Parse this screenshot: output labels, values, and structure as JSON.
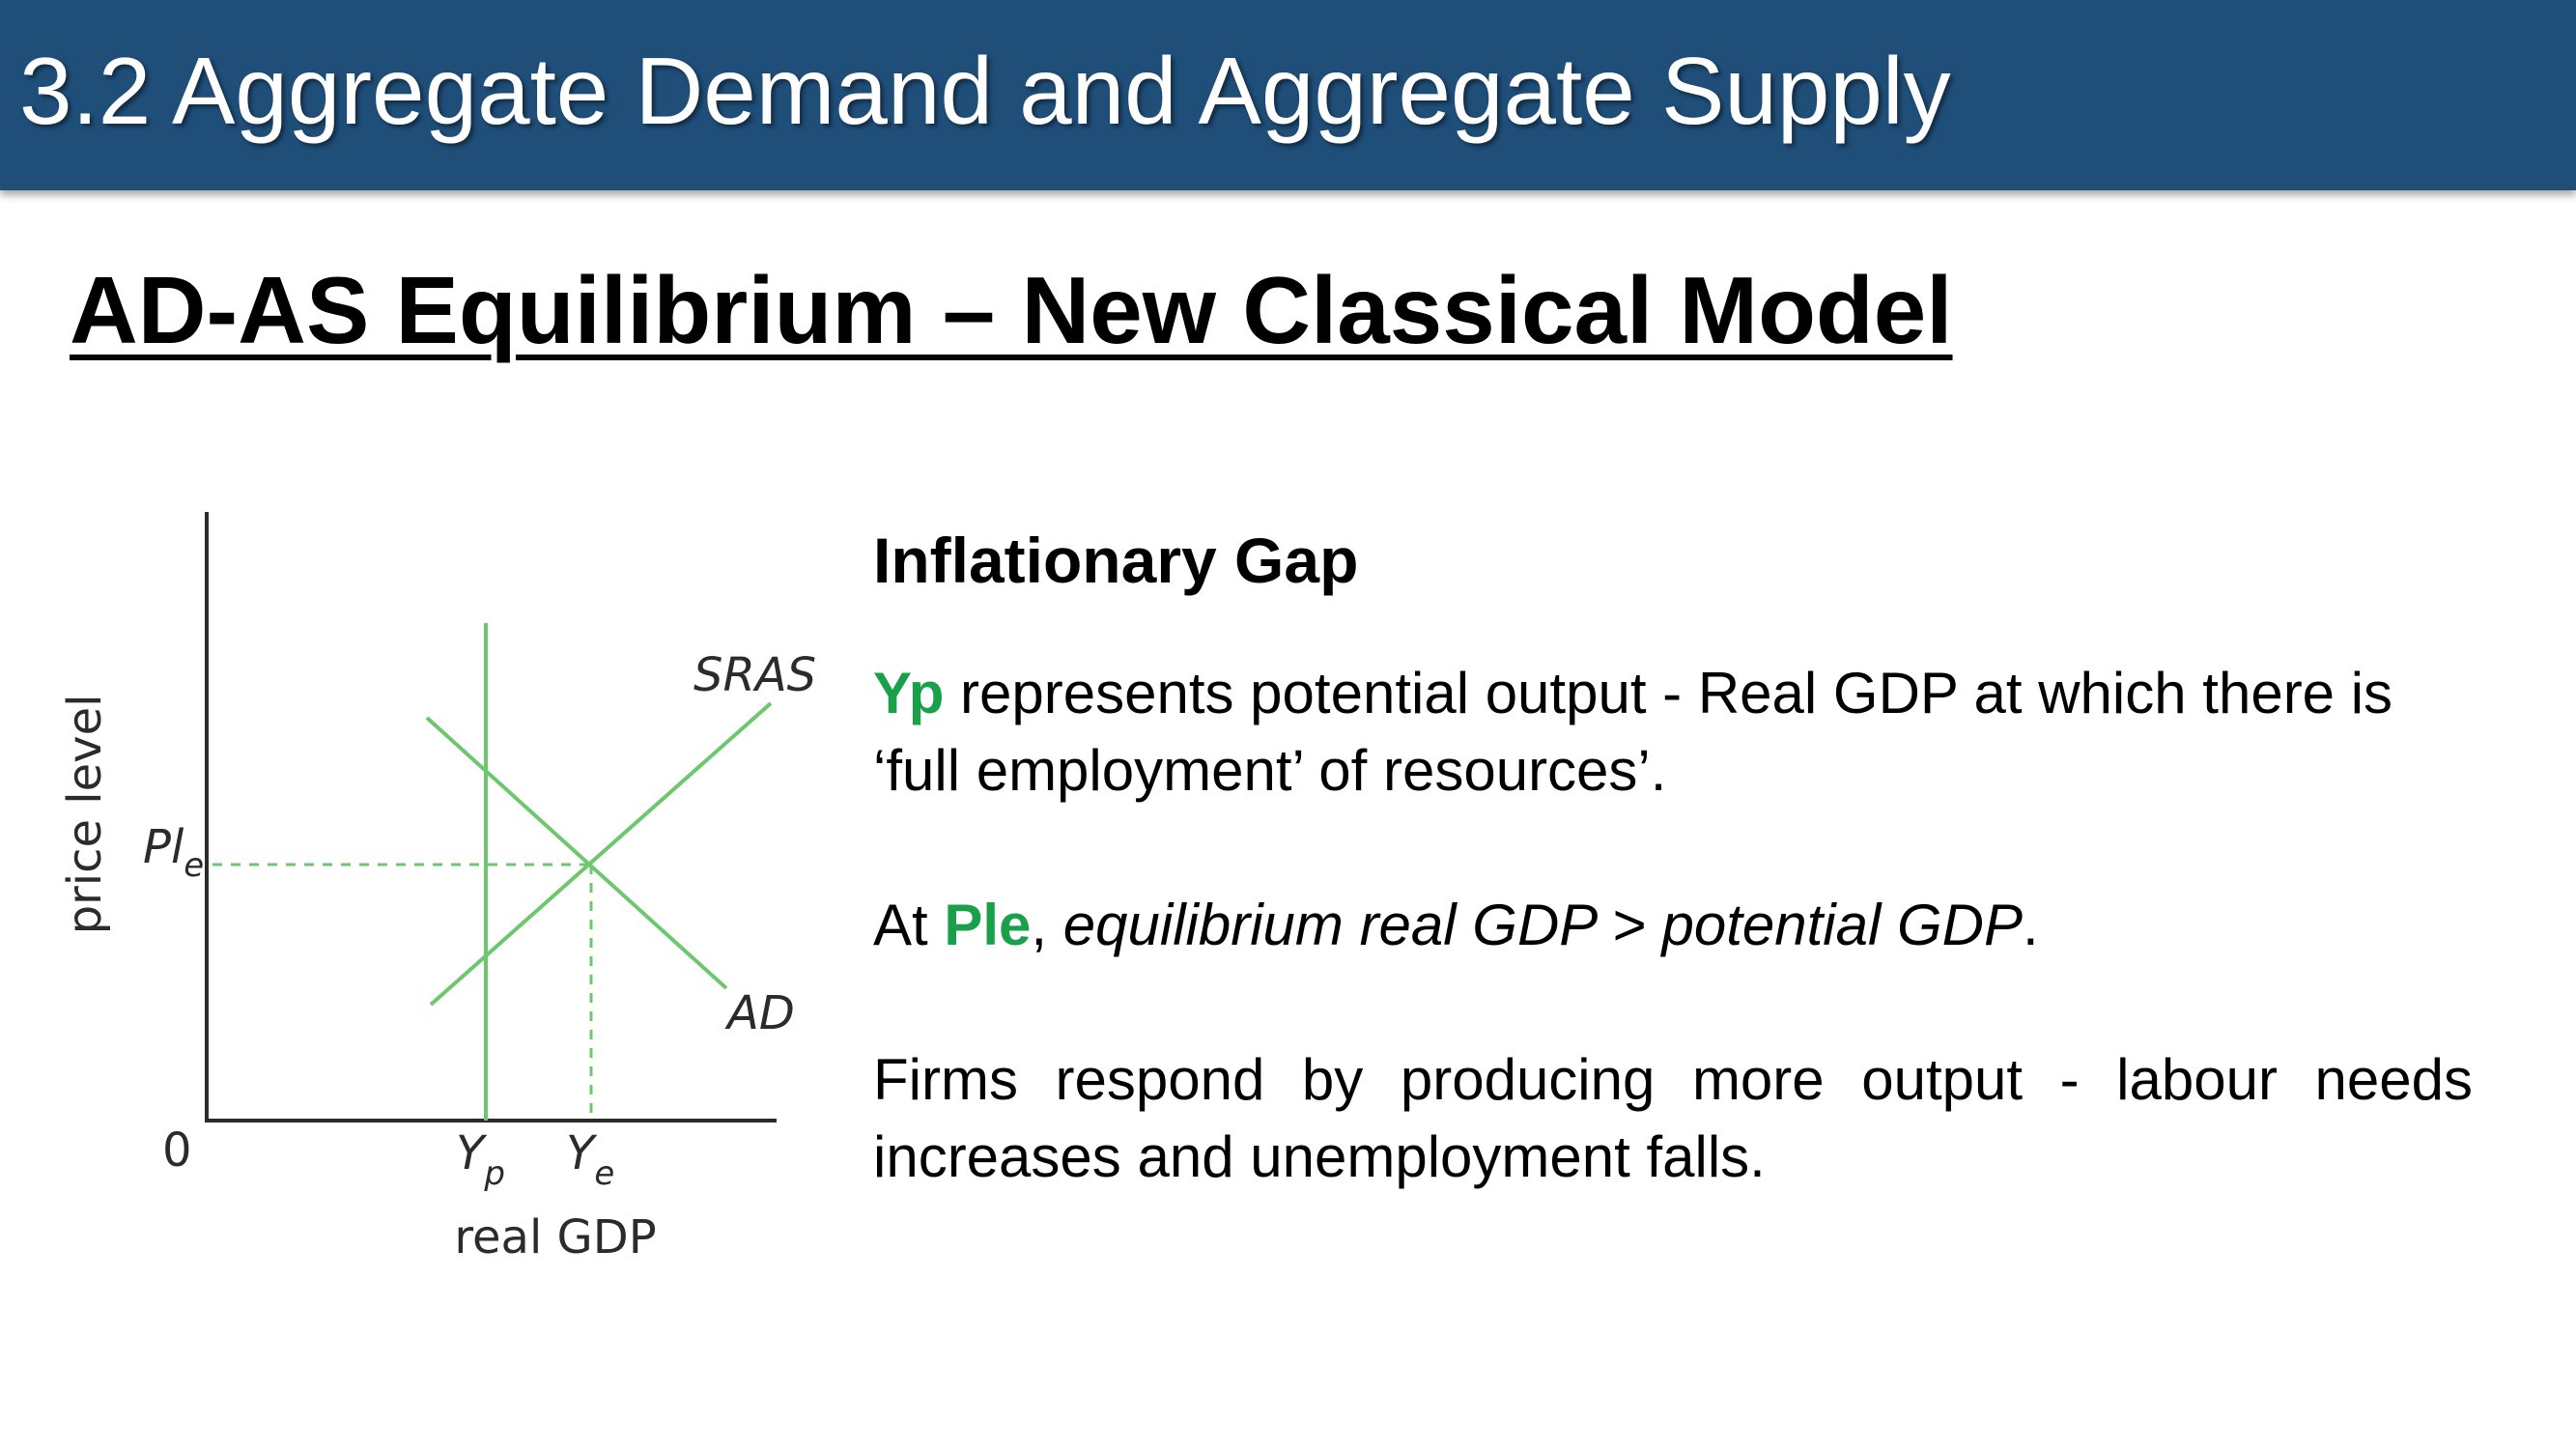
{
  "header": {
    "title": "3.2 Aggregate Demand and Aggregate Supply"
  },
  "slide_title": "AD-AS Equilibrium – New Classical Model",
  "diagram": {
    "y_axis_label": "price level",
    "x_axis_label": "real GDP",
    "origin_label": "0",
    "price_label_main": "Pl",
    "price_label_sub": "e",
    "yp_label_main": "Y",
    "yp_label_sub": "p",
    "ye_label_main": "Y",
    "ye_label_sub": "e",
    "sras_label": "SRAS",
    "ad_label": "AD",
    "curve_color": "#6cc76f",
    "axis_color": "#2b2b2b"
  },
  "content": {
    "heading": "Inflationary Gap",
    "p1_highlight": "Yp",
    "p1_text": " represents potential output - Real GDP at which there is ‘full employment’ of resources’.",
    "p2_prefix": "At ",
    "p2_highlight": "Ple",
    "p2_comma": ", ",
    "p2_italic": "equilibrium real GDP > potential GDP",
    "p2_end": ".",
    "p3_text": "Firms respond by producing more output - labour needs increases and unemployment falls.",
    "highlight_color": "#1aa04a"
  }
}
